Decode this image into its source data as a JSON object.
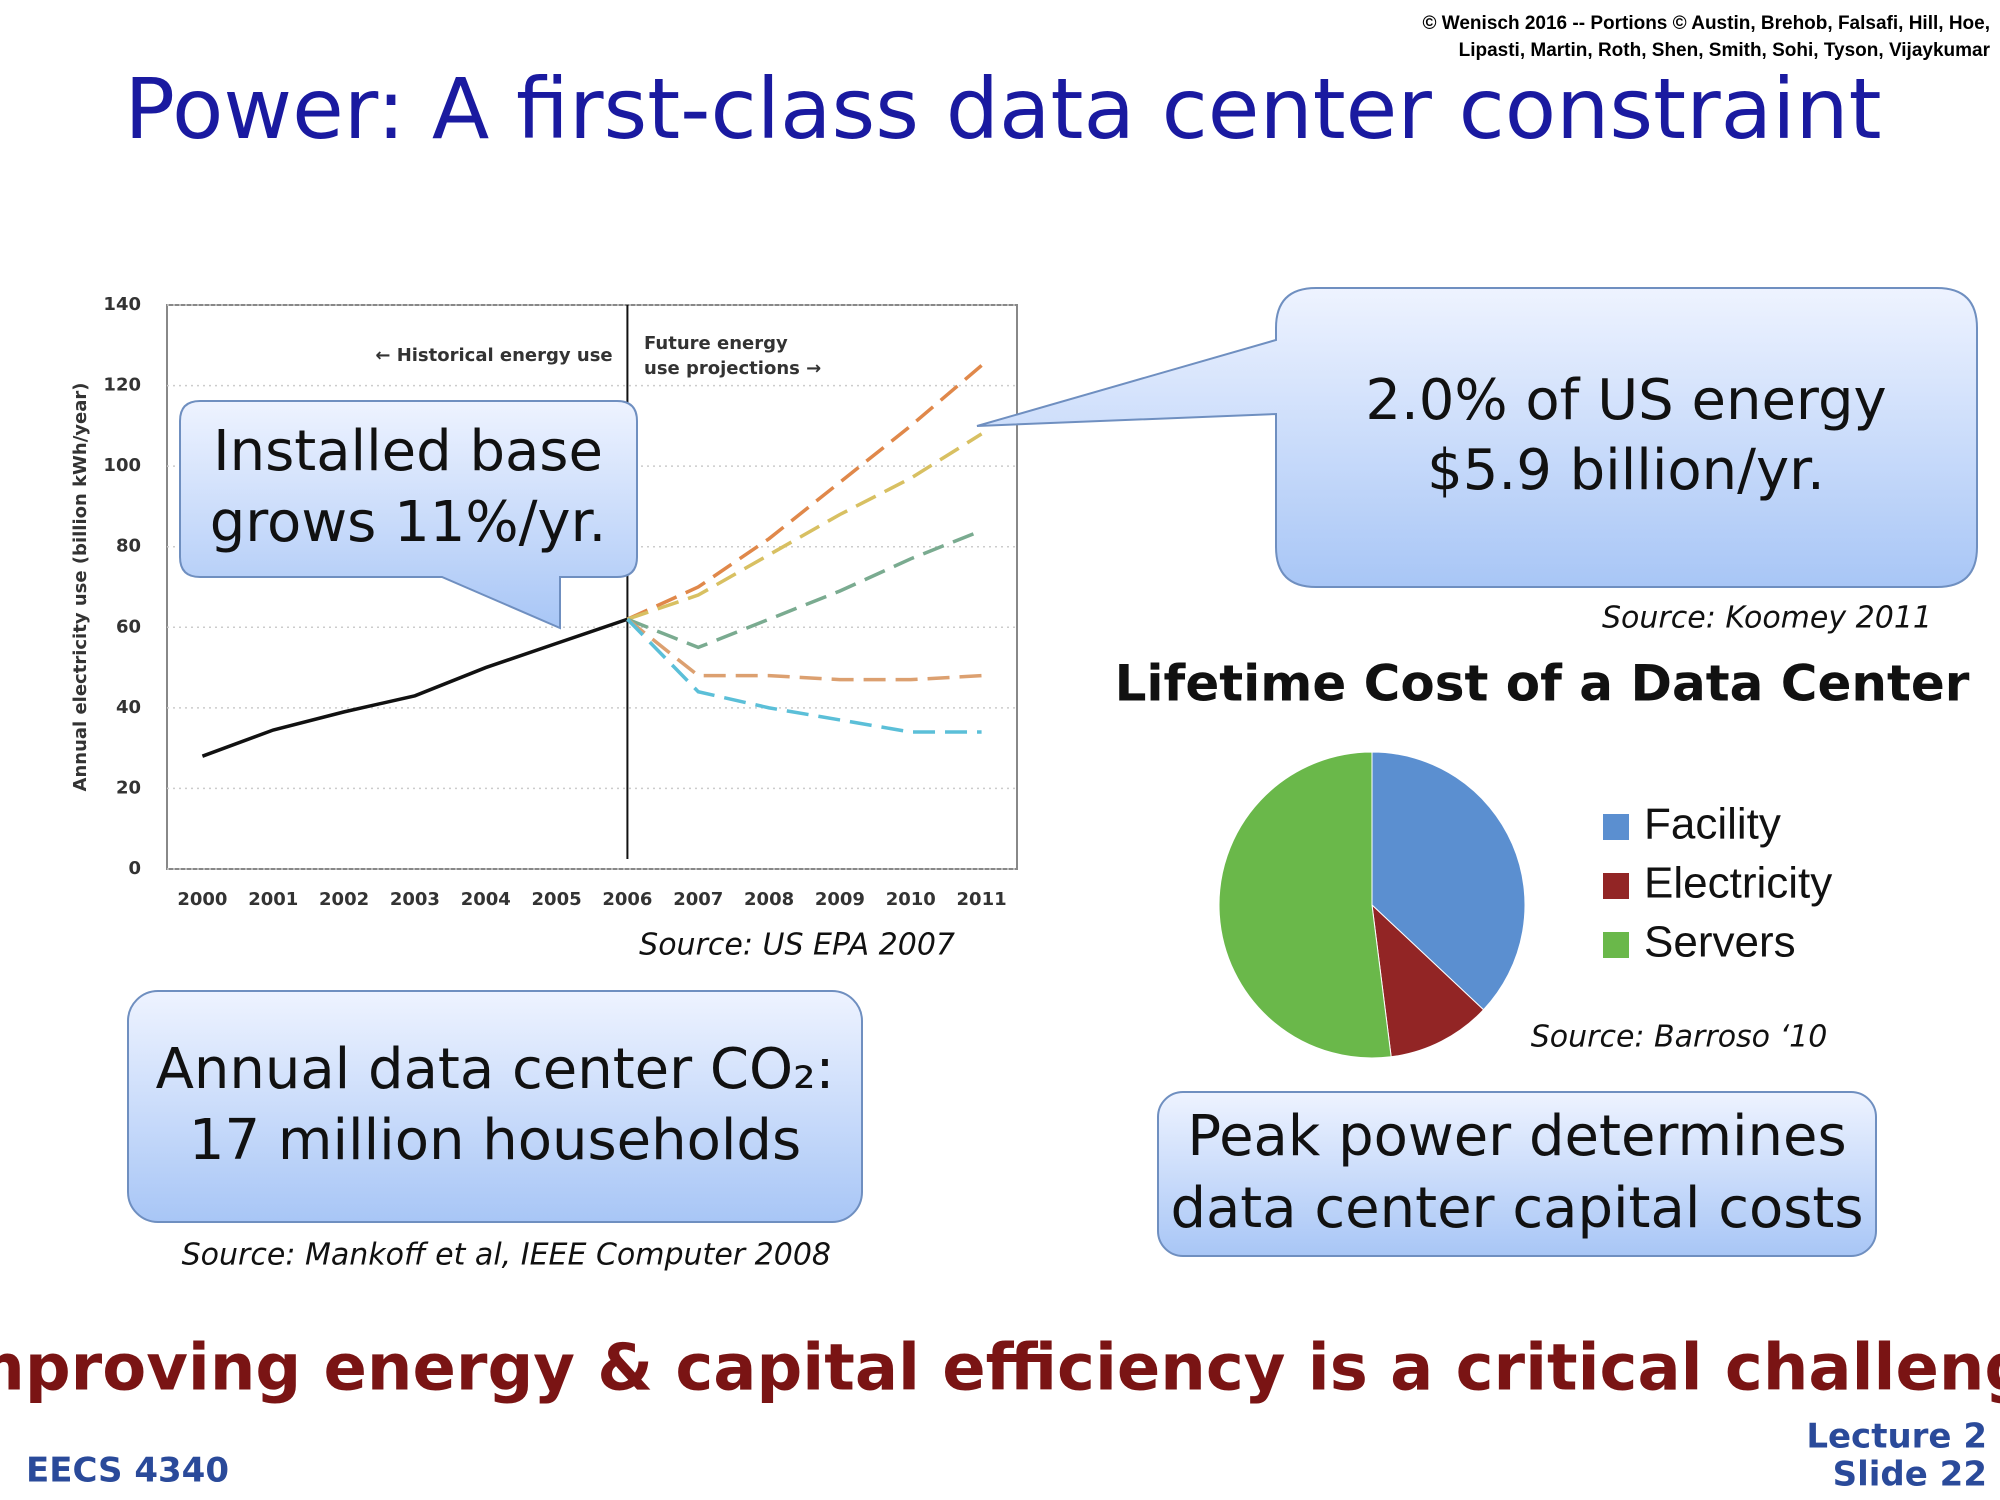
{
  "header": {
    "copyright": [
      "© Wenisch 2016 -- Portions © Austin, Brehob, Falsafi, Hill, Hoe,",
      "Lipasti, Martin, Roth, Shen, Smith, Sohi, Tyson, Vijaykumar"
    ],
    "title": "Power: A first-class data center constraint"
  },
  "chart_data": [
    {
      "type": "line",
      "ylabel": "Annual electricity use (billion kWh/year)",
      "annotations": [
        "← Historical energy use",
        "Future energy",
        "use projections →"
      ],
      "x": [
        2000,
        2001,
        2002,
        2003,
        2004,
        2005,
        2006,
        2007,
        2008,
        2009,
        2010,
        2011
      ],
      "xlim": [
        1999.5,
        2011.5
      ],
      "xticks": [
        2000,
        2001,
        2002,
        2003,
        2004,
        2005,
        2006,
        2007,
        2008,
        2009,
        2010,
        2011
      ],
      "ylim": [
        0,
        140
      ],
      "yticks": [
        0,
        20,
        40,
        60,
        80,
        100,
        120,
        140
      ],
      "grid": true,
      "divider_x": 2006,
      "series": [
        {
          "color": "#111111",
          "dashed": false,
          "values": [
            28,
            34.5,
            39,
            43,
            50,
            56,
            62,
            null,
            null,
            null,
            null,
            null
          ]
        },
        {
          "color": "#e0884a",
          "dashed": true,
          "values": [
            null,
            null,
            null,
            null,
            null,
            null,
            62,
            70,
            82,
            96,
            110,
            125
          ]
        },
        {
          "color": "#d8c062",
          "dashed": true,
          "values": [
            null,
            null,
            null,
            null,
            null,
            null,
            62,
            68,
            78,
            88,
            97,
            108
          ]
        },
        {
          "color": "#7aab90",
          "dashed": true,
          "values": [
            null,
            null,
            null,
            null,
            null,
            null,
            62,
            55,
            62,
            69,
            77,
            84
          ]
        },
        {
          "color": "#dca070",
          "dashed": true,
          "values": [
            null,
            null,
            null,
            null,
            null,
            null,
            62,
            48,
            48,
            47,
            47,
            48
          ]
        },
        {
          "color": "#5bbfd8",
          "dashed": true,
          "values": [
            null,
            null,
            null,
            null,
            null,
            null,
            62,
            44,
            40,
            37,
            34,
            34
          ]
        }
      ]
    },
    {
      "type": "pie",
      "title": "Lifetime Cost of a Data Center",
      "categories": [
        "Facility",
        "Electricity",
        "Servers"
      ],
      "values": [
        37,
        11,
        52
      ],
      "colors": [
        "#5b8fd0",
        "#922525",
        "#6ab84a"
      ]
    }
  ],
  "callouts": {
    "installed": [
      "Installed base",
      "grows 11%/yr."
    ],
    "energy": [
      "2.0% of US energy",
      "$5.9 billion/yr."
    ],
    "co2": [
      "Annual data center CO₂:",
      "17 million households"
    ],
    "peak": [
      "Peak power determines",
      "data center capital costs"
    ]
  },
  "sources": {
    "epa": "Source: US EPA 2007",
    "koomey": "Source: Koomey 2011",
    "barroso": "Source: Barroso ‘10",
    "mankoff": "Source: Mankoff et al, IEEE Computer 2008"
  },
  "footer": {
    "headline": "Improving energy & capital efficiency is a critical challenge",
    "course": "EECS 4340",
    "lecture": "Lecture 2",
    "slide": "Slide 22"
  }
}
